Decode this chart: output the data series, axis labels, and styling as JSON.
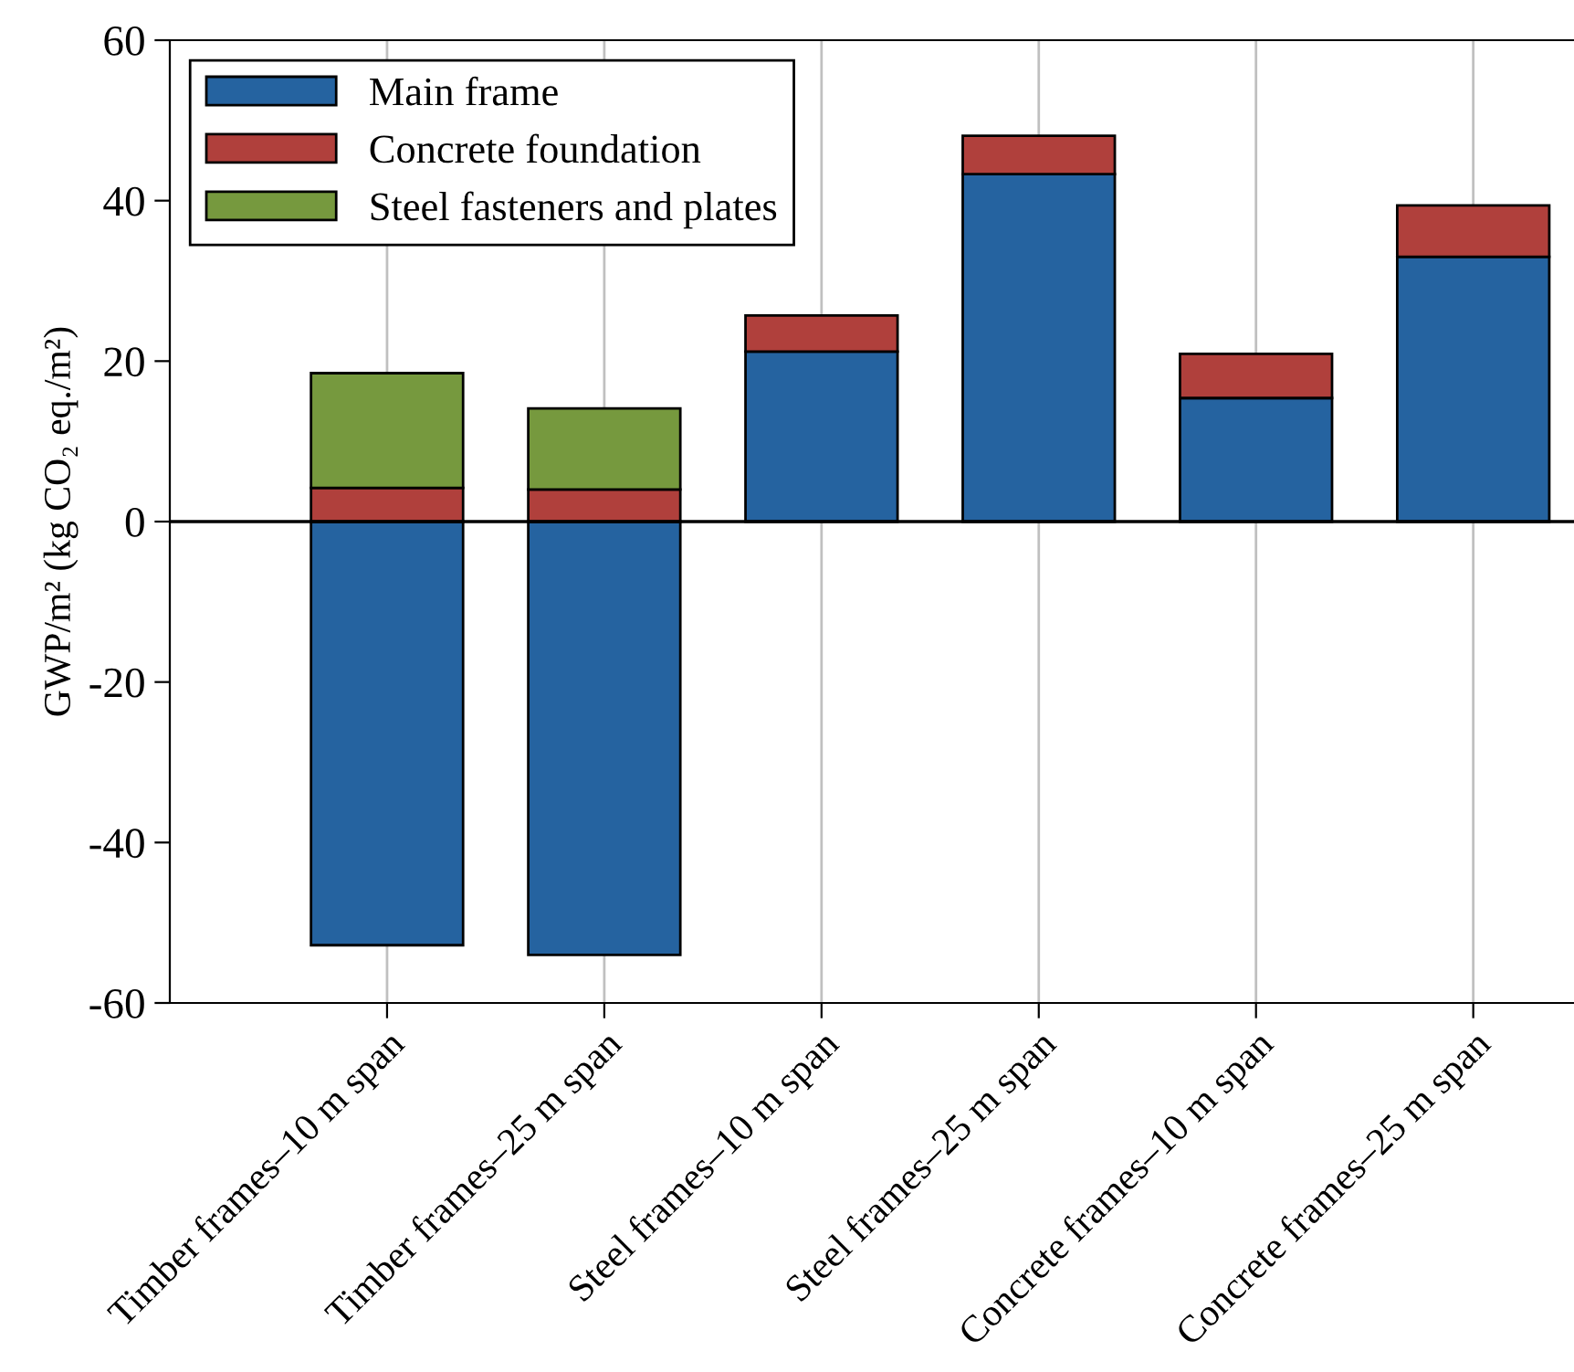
{
  "chart_data": {
    "type": "bar",
    "stacked": true,
    "ylabel": "GWP/m² (kg CO₂ eq./m²)",
    "categories": [
      "Timber frames–10 m span",
      "Timber frames–25 m span",
      "Steel frames–10 m span",
      "Steel frames–25 m span",
      "Concrete frames–10 m span",
      "Concrete frames–25 m span"
    ],
    "series": [
      {
        "name": "Main frame",
        "color": "#2563a0",
        "values": [
          -52.8,
          -54.0,
          21.2,
          43.3,
          15.4,
          33.0
        ]
      },
      {
        "name": "Concrete foundation",
        "color": "#b0403c",
        "values": [
          4.2,
          4.0,
          4.5,
          4.8,
          5.5,
          6.4
        ]
      },
      {
        "name": "Steel fasteners and plates",
        "color": "#76993e",
        "values": [
          14.3,
          10.1,
          null,
          null,
          null,
          null
        ]
      }
    ],
    "ylim": [
      -60,
      60
    ],
    "yticks": [
      {
        "value": -60,
        "label": "-60"
      },
      {
        "value": -40,
        "label": "-40"
      },
      {
        "value": -20,
        "label": "-20"
      },
      0,
      20,
      40,
      60
    ],
    "ref_lines": [
      {
        "axis": "y",
        "value": 0,
        "color": "#000000"
      }
    ],
    "grid": "x",
    "legend": "top left"
  }
}
